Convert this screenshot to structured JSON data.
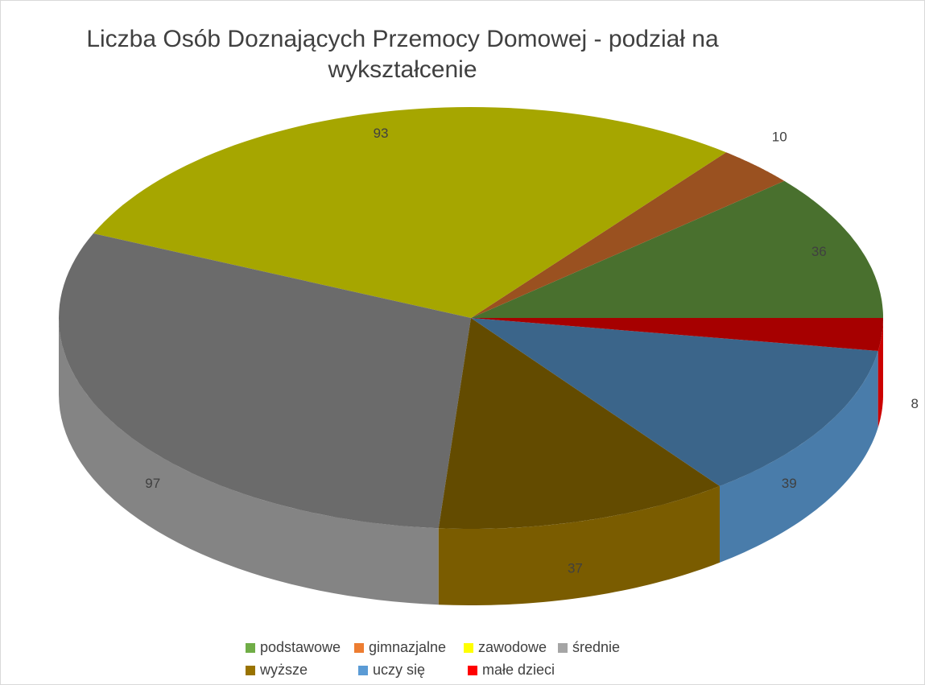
{
  "chart_data": {
    "type": "pie",
    "title": "Liczba Osób Doznających Przemocy Domowej - podział na wykształcenie",
    "categories": [
      "podstawowe",
      "gimnazjalne",
      "zawodowe",
      "średnie",
      "wyższe",
      "uczy się",
      "małe dzieci"
    ],
    "values": [
      36,
      10,
      93,
      97,
      37,
      39,
      8
    ],
    "colors": [
      "#70ad47",
      "#ed7d31",
      "#ffff00",
      "#a5a5a5",
      "#997300",
      "#5b9bd5",
      "#ff0000"
    ],
    "legend": "bottom"
  }
}
